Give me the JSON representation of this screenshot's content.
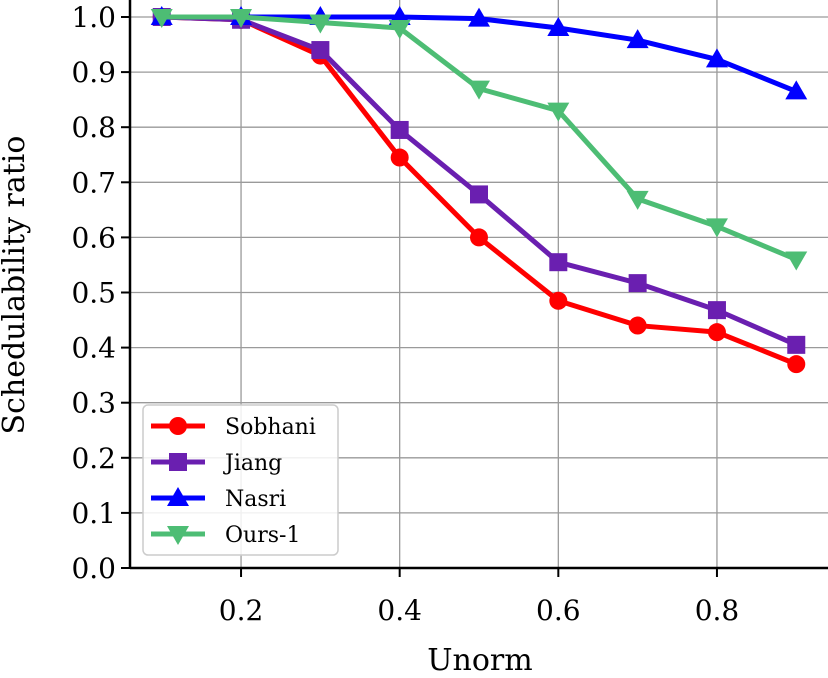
{
  "chart_data": {
    "type": "line",
    "xlabel": "Unorm",
    "ylabel": "Schedulability ratio",
    "xlim": [
      0.06,
      0.94
    ],
    "ylim": [
      0.0,
      1.0
    ],
    "xticks": [
      "0.2",
      "0.4",
      "0.6",
      "0.8"
    ],
    "yticks": [
      "0.0",
      "0.1",
      "0.2",
      "0.3",
      "0.4",
      "0.5",
      "0.6",
      "0.7",
      "0.8",
      "0.9",
      "1.0"
    ],
    "grid": true,
    "legend_position": "bottom-left",
    "x": [
      0.1,
      0.2,
      0.3,
      0.4,
      0.5,
      0.6,
      0.7,
      0.8,
      0.9
    ],
    "series": [
      {
        "name": "Sobhani",
        "color": "#ff0000",
        "marker": "circle",
        "values": [
          1.0,
          0.995,
          0.93,
          0.745,
          0.6,
          0.485,
          0.44,
          0.428,
          0.37
        ]
      },
      {
        "name": "Jiang",
        "color": "#6a1fb0",
        "marker": "square",
        "values": [
          1.0,
          0.995,
          0.94,
          0.795,
          0.678,
          0.555,
          0.517,
          0.468,
          0.405
        ]
      },
      {
        "name": "Nasri",
        "color": "#0000ff",
        "marker": "triangle-up",
        "values": [
          1.0,
          1.0,
          1.0,
          1.0,
          0.997,
          0.98,
          0.958,
          0.923,
          0.865
        ]
      },
      {
        "name": "Ours-1",
        "color": "#4dbd74",
        "marker": "triangle-down",
        "values": [
          1.0,
          1.0,
          0.99,
          0.98,
          0.87,
          0.83,
          0.67,
          0.62,
          0.56
        ]
      }
    ]
  }
}
